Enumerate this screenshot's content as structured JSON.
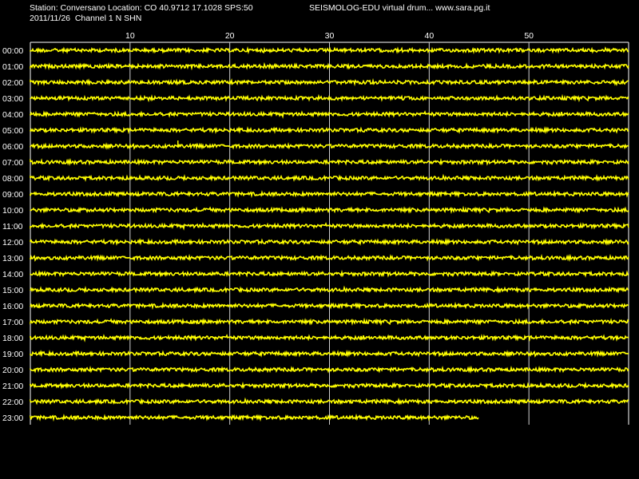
{
  "header": {
    "station_line": "Station: Conversano Location: CO 40.9712 17.1028 SPS:50",
    "app_line": "SEISMOLOG-EDU virtual drum... www.sara.pg.it",
    "date_line": "2011/11/26  Channel 1 N SHN"
  },
  "chart_data": {
    "type": "line",
    "x_ticks": [
      "10",
      "20",
      "30",
      "40",
      "50"
    ],
    "x_tick_values": [
      10,
      20,
      30,
      40,
      50
    ],
    "xlim": [
      0,
      60
    ],
    "row_labels": [
      "00:00",
      "01:00",
      "02:00",
      "03:00",
      "04:00",
      "05:00",
      "06:00",
      "07:00",
      "08:00",
      "09:00",
      "10:00",
      "11:00",
      "12:00",
      "13:00",
      "14:00",
      "15:00",
      "16:00",
      "17:00",
      "18:00",
      "19:00",
      "20:00",
      "21:00",
      "22:00",
      "23:00"
    ],
    "row_end_minutes": [
      60,
      60,
      60,
      60,
      60,
      60,
      60,
      60,
      60,
      60,
      60,
      60,
      60,
      60,
      60,
      60,
      60,
      60,
      60,
      60,
      60,
      60,
      60,
      45
    ],
    "events": [
      {
        "row": "06:00",
        "minute": 14.8
      }
    ],
    "grid": true,
    "trace_color": "#ffff00",
    "axis_color": "#ffffff"
  }
}
